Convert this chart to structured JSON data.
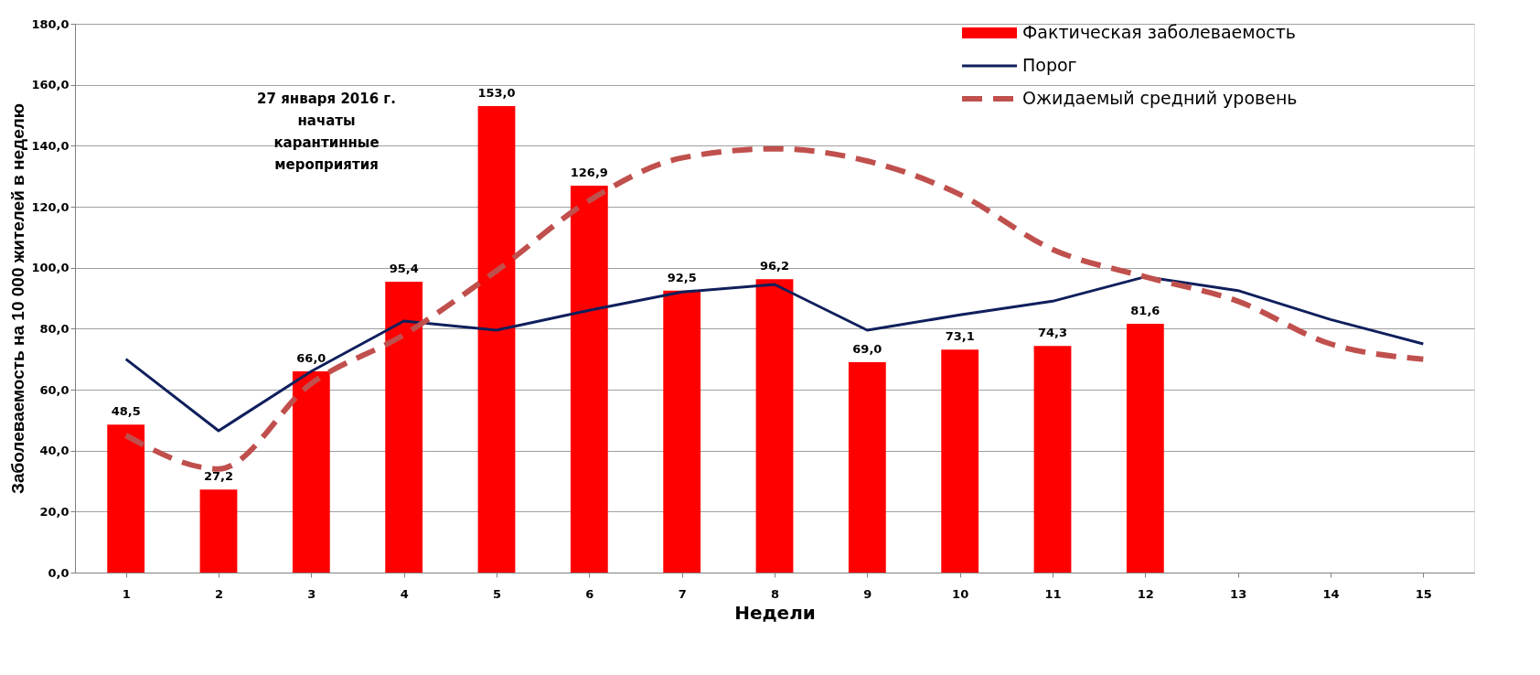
{
  "chart_data": {
    "type": "bar",
    "xlabel": "Недели",
    "ylabel": "Заболеваемость на 10 000 жителей в неделю",
    "categories": [
      "1",
      "2",
      "3",
      "4",
      "5",
      "6",
      "7",
      "8",
      "9",
      "10",
      "11",
      "12",
      "13",
      "14",
      "15"
    ],
    "series": [
      {
        "name": "Фактическая заболеваемость",
        "color": "#ff0000",
        "values": [
          48.5,
          27.2,
          66.0,
          95.4,
          153.0,
          126.9,
          92.5,
          96.2,
          69.0,
          73.1,
          74.3,
          81.6,
          null,
          null,
          null
        ],
        "value_labels": [
          "48,5",
          "27,2",
          "66,0",
          "95,4",
          "153,0",
          "126,9",
          "92,5",
          "96,2",
          "69,0",
          "73,1",
          "74,3",
          "81,6",
          null,
          null,
          null
        ]
      },
      {
        "name": "Порог",
        "type": "line",
        "color": "#0f1f5c",
        "line_style": "solid",
        "values": [
          70,
          46.5,
          66,
          82.5,
          79.5,
          86,
          92,
          94.5,
          79.5,
          84.5,
          89,
          97,
          92.5,
          83,
          75
        ]
      },
      {
        "name": "Ожидаемый средний уровень",
        "type": "line",
        "color": "#c0504d",
        "line_style": "dashed",
        "values": [
          45,
          34,
          62,
          78,
          99,
          122,
          136,
          139,
          135,
          124,
          106,
          97,
          89,
          75,
          70
        ]
      }
    ],
    "ylim": [
      0,
      180
    ],
    "yticks": [
      {
        "value": 0,
        "label": "0,0"
      },
      {
        "value": 20,
        "label": "20,0"
      },
      {
        "value": 40,
        "label": "40,0"
      },
      {
        "value": 60,
        "label": "60,0"
      },
      {
        "value": 80,
        "label": "80,0"
      },
      {
        "value": 100,
        "label": "100,0"
      },
      {
        "value": 120,
        "label": "120,0"
      },
      {
        "value": 140,
        "label": "140,0"
      },
      {
        "value": 160,
        "label": "160,0"
      },
      {
        "value": 180,
        "label": "180,0"
      }
    ],
    "grid": "y",
    "legend": "top right",
    "annotations": [
      "27 января 2016 г.\nначаты\nкарантинные\nмероприятия"
    ]
  }
}
